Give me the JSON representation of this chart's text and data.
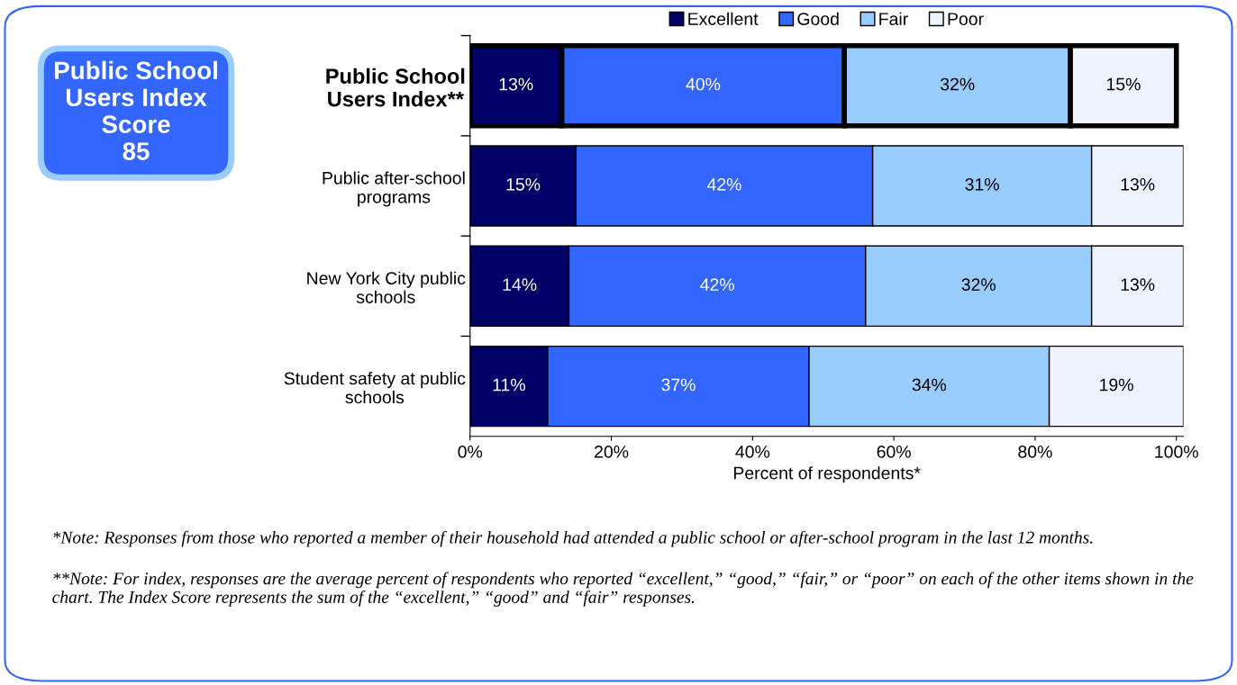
{
  "chart_data": {
    "type": "bar",
    "orientation": "horizontal",
    "stacked": true,
    "categories": [
      "Public School\nUsers Index**",
      "Public after-school\nprograms",
      "New York City public\nschools",
      "Student safety at public\nschools"
    ],
    "series": [
      {
        "name": "Excellent",
        "color": "#000066",
        "values": [
          13,
          15,
          14,
          11
        ],
        "value_labels": [
          "13%",
          "15%",
          "14%",
          "11%"
        ]
      },
      {
        "name": "Good",
        "color": "#3366ff",
        "values": [
          40,
          42,
          42,
          37
        ],
        "value_labels": [
          "40%",
          "42%",
          "42%",
          "37%"
        ]
      },
      {
        "name": "Fair",
        "color": "#99ccff",
        "values": [
          32,
          31,
          32,
          34
        ],
        "value_labels": [
          "32%",
          "31%",
          "32%",
          "34%"
        ]
      },
      {
        "name": "Poor",
        "color": "#eef4ff",
        "values": [
          15,
          13,
          13,
          19
        ],
        "value_labels": [
          "15%",
          "13%",
          "13%",
          "19%"
        ]
      }
    ],
    "xlim": [
      0,
      101
    ],
    "xticks": [
      {
        "value": 0,
        "label": "0%"
      },
      {
        "value": 20,
        "label": "20%"
      },
      {
        "value": 40,
        "label": "40%"
      },
      {
        "value": 60,
        "label": "60%"
      },
      {
        "value": 80,
        "label": "80%"
      },
      {
        "value": 100,
        "label": "100%"
      }
    ],
    "xlabel": "Percent of respondents*",
    "legend": "top",
    "grid": false,
    "annotations": [
      "Public School\nUsers Index\nScore\n85",
      "*Note: Responses from those who reported a member of their household had attended a public school or after-school program in the last 12 months.",
      "**Note: For index, responses are the average percent of respondents who reported “excellent,” “good,” “fair,” or “poor” on each of the other items shown in the chart. The Index Score represents the sum of the “excellent,” “good” and “fair” responses."
    ]
  }
}
